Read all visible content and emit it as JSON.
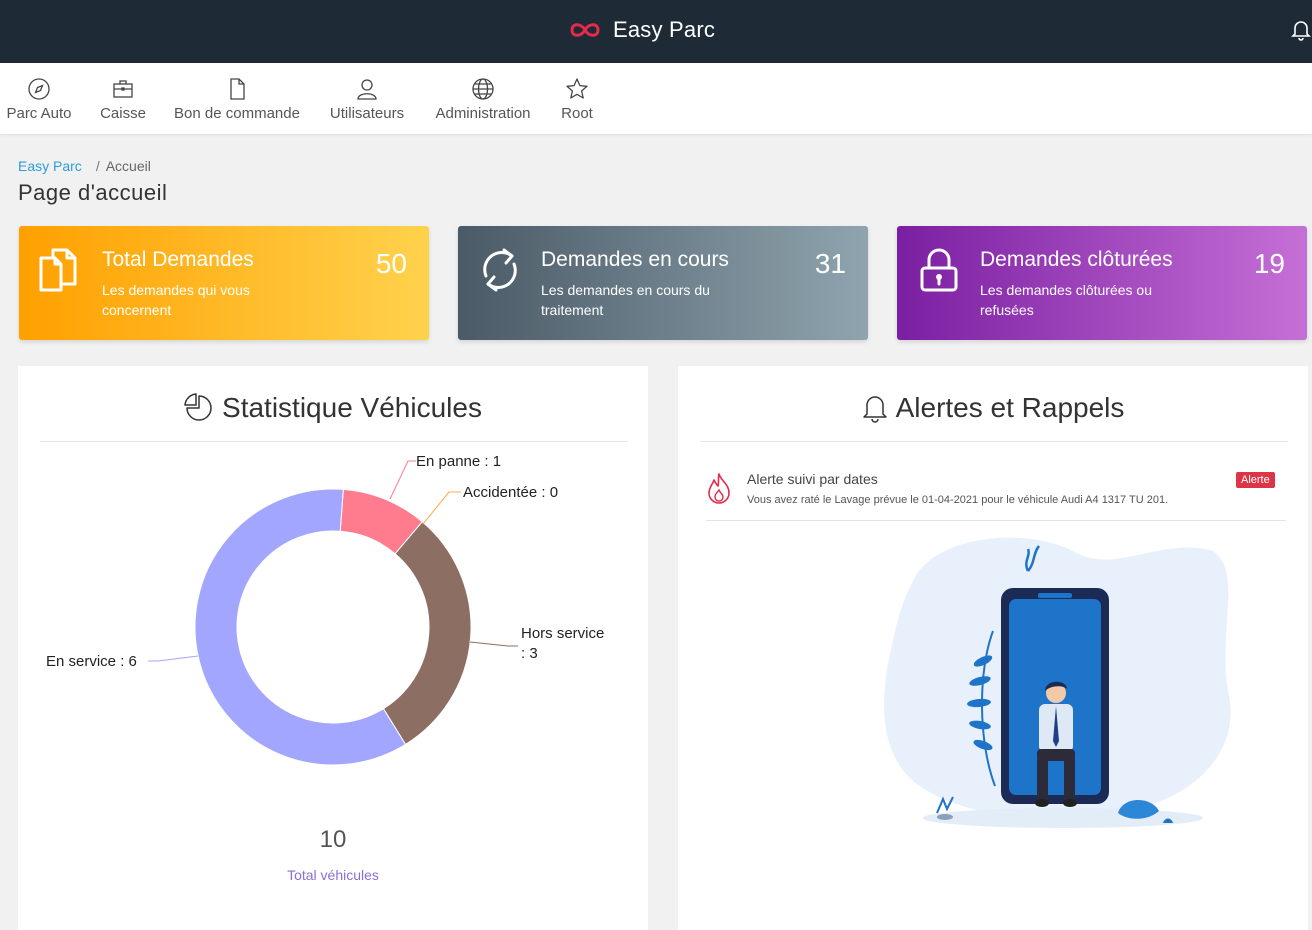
{
  "app": {
    "title": "Easy Parc",
    "logo_icon": "infinity-logo-icon",
    "notification_icon": "bell-icon"
  },
  "nav": {
    "items": [
      {
        "label": "Parc Auto",
        "icon": "compass-icon"
      },
      {
        "label": "Caisse",
        "icon": "briefcase-icon"
      },
      {
        "label": "Bon de commande",
        "icon": "file-icon"
      },
      {
        "label": "Utilisateurs",
        "icon": "user-icon"
      },
      {
        "label": "Administration",
        "icon": "globe-icon"
      },
      {
        "label": "Root",
        "icon": "star-icon"
      }
    ]
  },
  "breadcrumb": {
    "home": "Easy Parc",
    "separator": "/",
    "current": "Accueil"
  },
  "page": {
    "title": "Page d'accueil"
  },
  "cards": [
    {
      "title": "Total Demandes",
      "subtitle": "Les demandes qui vous concernent",
      "value": "50",
      "icon": "files-icon",
      "colors": [
        "#ffa000",
        "#ffd24d"
      ]
    },
    {
      "title": "Demandes en cours",
      "subtitle": "Les demandes en cours du traitement",
      "value": "31",
      "icon": "refresh-icon",
      "colors": [
        "#4a5a66",
        "#8fa4ae"
      ]
    },
    {
      "title": "Demandes clôturées",
      "subtitle": "Les demandes clôturées ou refusées",
      "value": "19",
      "icon": "lock-icon",
      "colors": [
        "#7b1fa2",
        "#c56fd6"
      ]
    }
  ],
  "stats": {
    "title": "Statistique Véhicules",
    "icon": "pie-chart-icon",
    "total_value": "10",
    "total_label": "Total véhicules"
  },
  "chart_data": {
    "type": "pie",
    "title": "Statistique Véhicules",
    "labels": [
      "En panne",
      "Accidentée",
      "Hors service",
      "En service"
    ],
    "values": [
      1,
      0,
      3,
      6
    ],
    "label_texts": [
      "En panne : 1",
      "Accidentée : 0",
      "Hors service",
      ": 3",
      "En service : 6"
    ],
    "colors": [
      "#ff7b8e",
      "#ffa94d",
      "#8d6e63",
      "#a3a6ff"
    ],
    "donut": true
  },
  "alerts": {
    "title": "Alertes et Rappels",
    "icon": "bell-icon",
    "items": [
      {
        "title": "Alerte suivi par dates",
        "text": "Vous avez raté le Lavage prévue le 01-04-2021 pour le véhicule Audi A4 1317 TU 201.",
        "badge": "Alerte",
        "icon": "fire-icon"
      }
    ]
  }
}
